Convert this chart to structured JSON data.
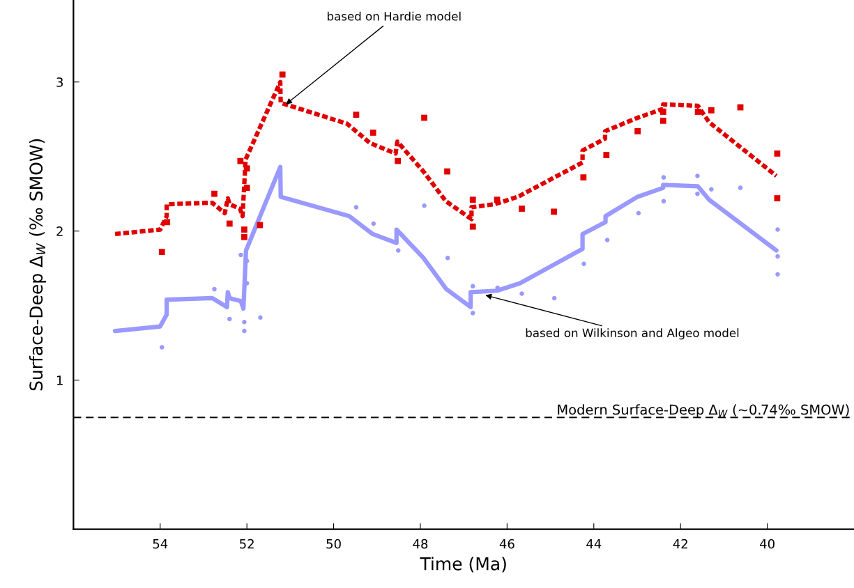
{
  "chart_data": {
    "type": "line",
    "xlabel": "Time (Ma)",
    "ylabel": "Surface-Deep Δ$_{W}$ (‰ SMOW)",
    "xlim": [
      56,
      38
    ],
    "xticks": [
      54,
      52,
      50,
      48,
      46,
      44,
      42,
      40
    ],
    "ylim": [
      0,
      3.55
    ],
    "yticks": [
      1,
      2,
      3
    ],
    "grid": false,
    "series": [
      {
        "type": "line",
        "color": "#e00000",
        "line_style": "dashed",
        "marker": "none",
        "x": [
          55.04,
          54.0,
          53.85,
          53.85,
          52.8,
          52.51,
          52.44,
          52.4,
          52.16,
          52.1,
          52.03,
          51.23,
          51.22,
          49.69,
          49.16,
          48.57,
          48.53,
          47.93,
          47.41,
          46.82,
          46.82,
          46.29,
          45.75,
          44.26,
          44.26,
          43.74,
          43.74,
          42.99,
          42.4,
          42.4,
          41.6,
          41.34,
          39.79
        ],
        "values": [
          1.98,
          2.01,
          2.1,
          2.18,
          2.19,
          2.12,
          2.22,
          2.18,
          2.15,
          2.1,
          2.48,
          3.0,
          2.86,
          2.72,
          2.59,
          2.52,
          2.6,
          2.4,
          2.2,
          2.08,
          2.16,
          2.18,
          2.23,
          2.46,
          2.54,
          2.62,
          2.67,
          2.76,
          2.82,
          2.85,
          2.84,
          2.73,
          2.37
        ]
      },
      {
        "type": "line",
        "color": "#9999ff",
        "line_style": "solid",
        "marker": "none",
        "x": [
          55.04,
          54.0,
          53.85,
          53.85,
          52.8,
          52.46,
          52.44,
          52.4,
          52.14,
          52.08,
          52.02,
          51.23,
          51.22,
          49.64,
          49.1,
          48.55,
          48.55,
          47.93,
          47.4,
          46.84,
          46.84,
          46.23,
          45.7,
          44.26,
          44.26,
          43.73,
          43.73,
          42.99,
          42.4,
          42.4,
          41.6,
          41.34,
          39.79
        ],
        "values": [
          1.33,
          1.36,
          1.44,
          1.54,
          1.55,
          1.49,
          1.59,
          1.55,
          1.53,
          1.48,
          1.87,
          2.43,
          2.23,
          2.1,
          1.98,
          1.92,
          2.01,
          1.82,
          1.61,
          1.49,
          1.59,
          1.6,
          1.65,
          1.88,
          1.98,
          2.06,
          2.1,
          2.23,
          2.29,
          2.31,
          2.3,
          2.21,
          1.87
        ]
      },
      {
        "type": "scatter",
        "color": "#e00000",
        "marker": "square",
        "x": [
          52.15,
          52.75,
          52.4,
          52.06,
          52.06,
          51.7,
          53.96,
          49.48,
          52.0,
          52.0,
          53.84,
          51.18,
          47.91,
          49.09,
          48.52,
          47.38,
          46.79,
          46.79,
          46.23,
          45.66,
          44.92,
          44.24,
          43.71,
          42.99,
          42.4,
          42.4,
          41.6,
          41.29,
          40.62,
          39.77,
          39.77
        ],
        "values": [
          2.47,
          2.25,
          2.05,
          2.01,
          1.96,
          2.04,
          1.86,
          2.78,
          2.42,
          2.29,
          2.06,
          3.05,
          2.76,
          2.66,
          2.47,
          2.4,
          2.21,
          2.03,
          2.21,
          2.15,
          2.13,
          2.36,
          2.51,
          2.67,
          2.74,
          2.8,
          2.8,
          2.81,
          2.83,
          2.52,
          2.22
        ]
      },
      {
        "type": "scatter",
        "color": "#9999ff",
        "marker": "circle",
        "x": [
          52.14,
          52.75,
          52.4,
          52.06,
          52.06,
          51.69,
          53.96,
          49.48,
          52.0,
          52.0,
          47.91,
          49.08,
          48.51,
          47.37,
          46.79,
          46.79,
          46.22,
          45.66,
          44.91,
          44.23,
          43.69,
          42.97,
          42.39,
          42.39,
          41.61,
          41.61,
          41.29,
          40.62,
          39.76,
          39.76,
          39.76
        ],
        "values": [
          1.84,
          1.61,
          1.41,
          1.39,
          1.33,
          1.42,
          1.22,
          2.16,
          1.8,
          1.65,
          2.17,
          2.05,
          1.87,
          1.82,
          1.63,
          1.45,
          1.62,
          1.58,
          1.55,
          1.78,
          1.94,
          2.12,
          2.36,
          2.2,
          2.37,
          2.25,
          2.28,
          2.29,
          2.01,
          1.71,
          1.83
        ]
      }
    ],
    "ref_lines": [
      {
        "axis": "y",
        "value": 0.75,
        "label": "Modern Surface-Deep Δ$_{W}$ (~0.74‰ SMOW)",
        "color": "#000000",
        "line_style": "dashed"
      }
    ],
    "annotations": [
      {
        "text": "based on Hardie model",
        "x": 51.1,
        "y": 2.85
      },
      {
        "text": "based on Wilkinson and Algeo model",
        "x": 46.5,
        "y": 1.57
      }
    ]
  }
}
